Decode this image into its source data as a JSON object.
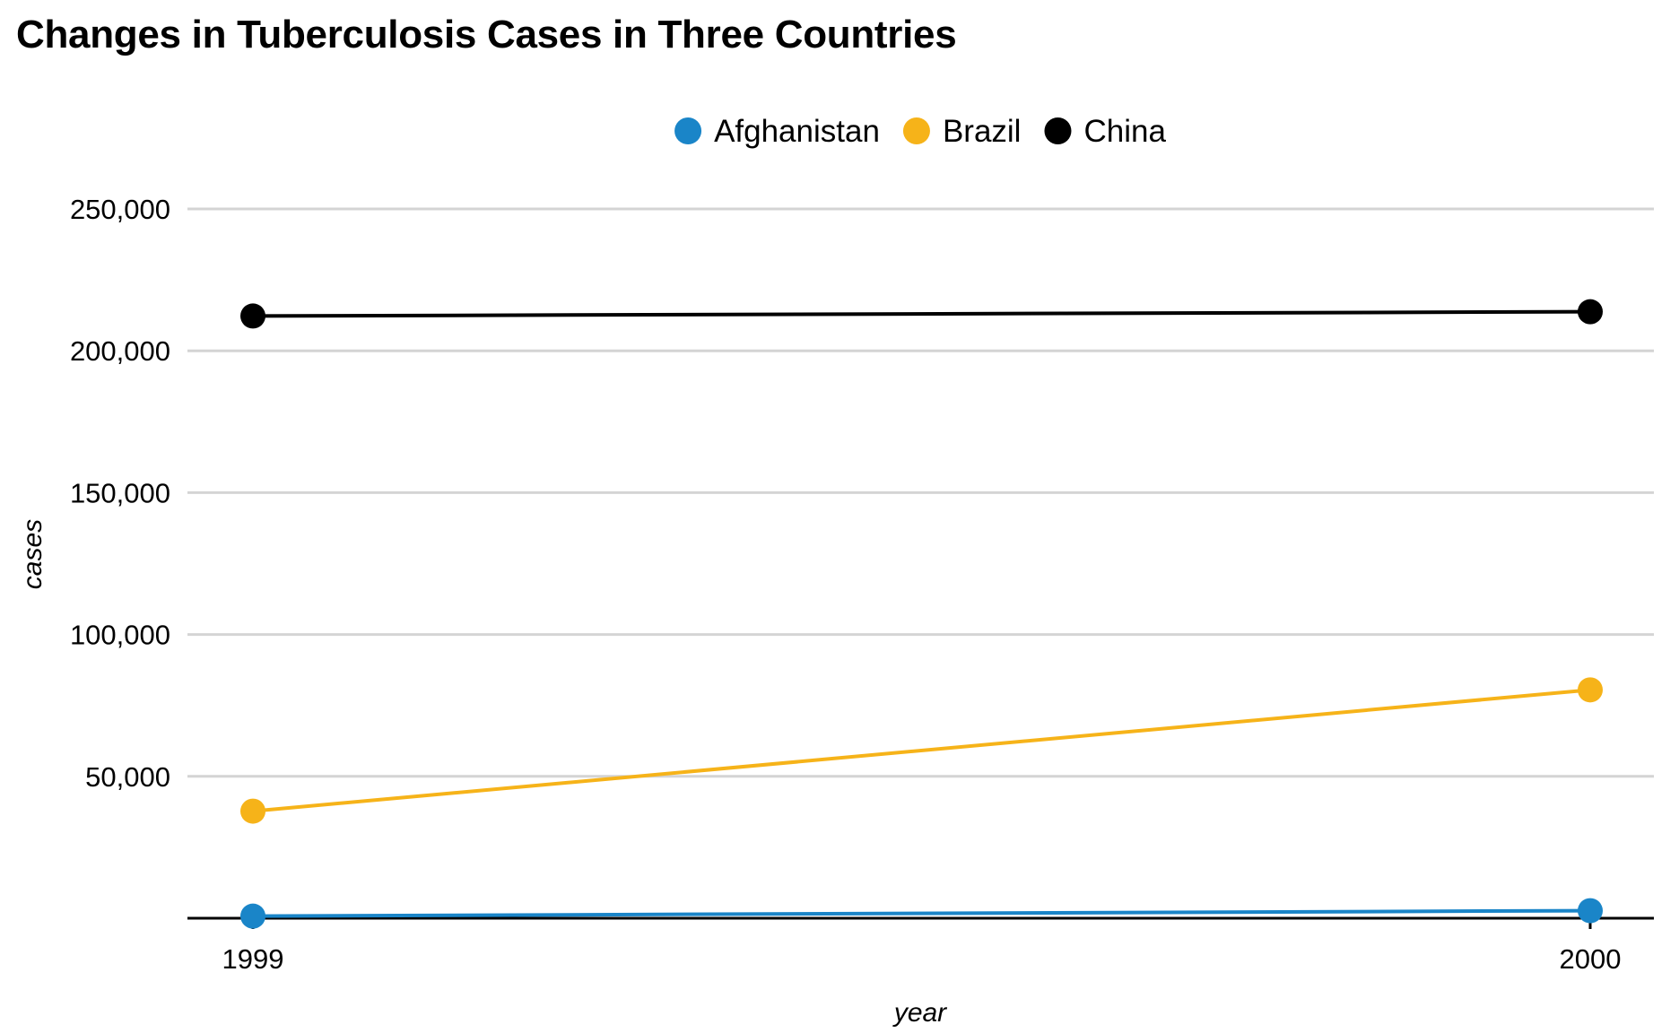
{
  "chart_data": {
    "type": "line",
    "title": "Changes in Tuberculosis Cases in Three Countries",
    "xlabel": "year",
    "ylabel": "cases",
    "x": [
      "1999",
      "2000"
    ],
    "ylim": [
      0,
      250000
    ],
    "yticks": [
      50000,
      100000,
      150000,
      200000,
      250000
    ],
    "ytick_labels": [
      "50,000",
      "100,000",
      "150,000",
      "200,000",
      "250,000"
    ],
    "grid": "horizontal",
    "legend_position": "top",
    "series": [
      {
        "name": "Afghanistan",
        "color": "#1a85c8",
        "values": [
          745,
          2666
        ]
      },
      {
        "name": "Brazil",
        "color": "#f6b319",
        "values": [
          37737,
          80488
        ]
      },
      {
        "name": "China",
        "color": "#000000",
        "values": [
          212258,
          213766
        ]
      }
    ]
  }
}
